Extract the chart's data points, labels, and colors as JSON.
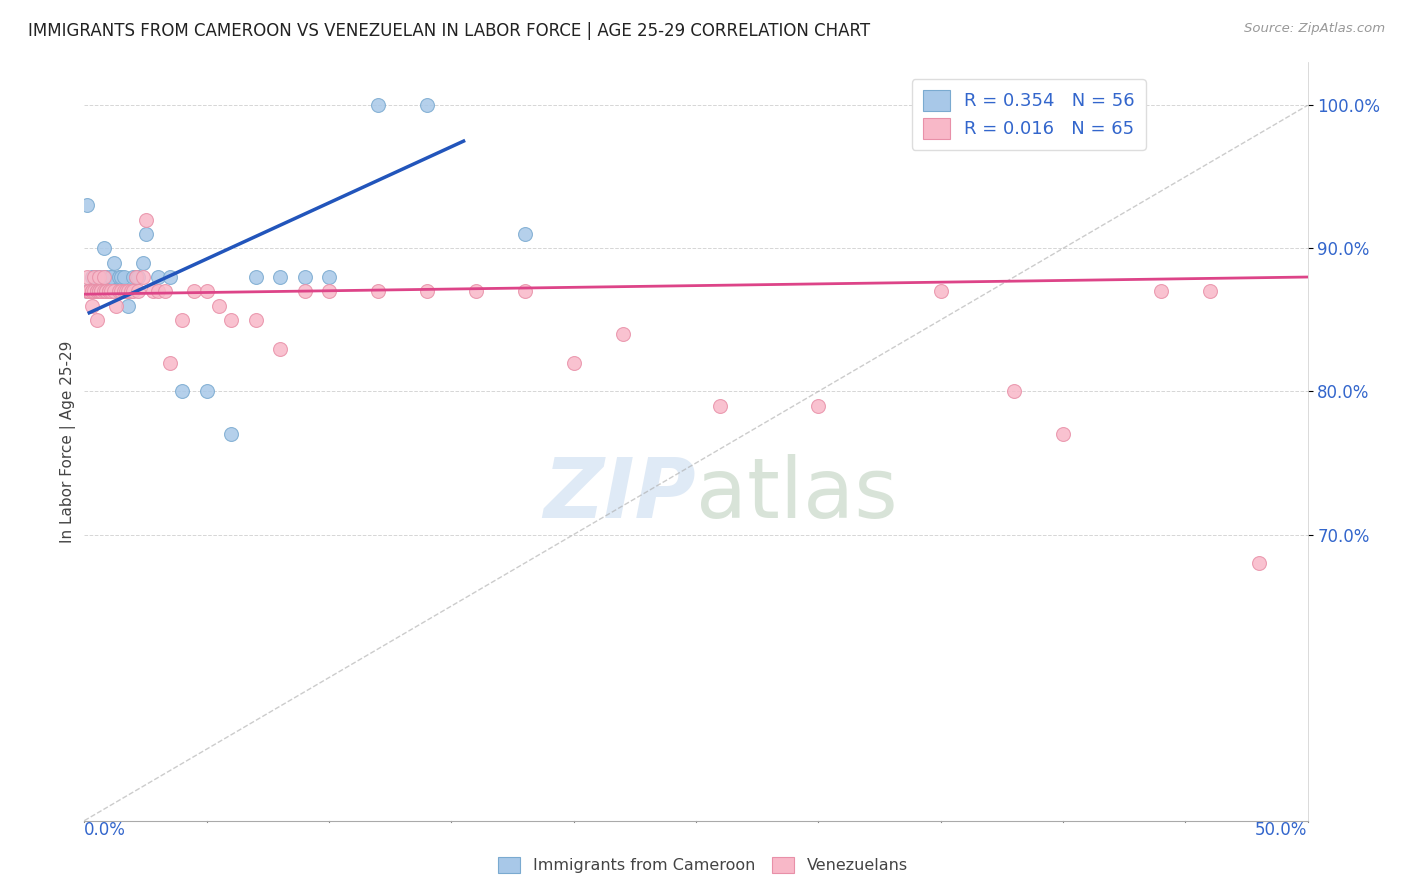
{
  "title": "IMMIGRANTS FROM CAMEROON VS VENEZUELAN IN LABOR FORCE | AGE 25-29 CORRELATION CHART",
  "source": "Source: ZipAtlas.com",
  "ylabel": "In Labor Force | Age 25-29",
  "xlim": [
    0.0,
    0.5
  ],
  "ylim": [
    0.5,
    1.03
  ],
  "yticks": [
    0.7,
    0.8,
    0.9,
    1.0
  ],
  "ytick_labels": [
    "70.0%",
    "80.0%",
    "90.0%",
    "100.0%"
  ],
  "cameroon_color": "#a8c8e8",
  "cameroon_edge": "#7aaad0",
  "venezuelan_color": "#f8b8c8",
  "venezuelan_edge": "#e890a8",
  "cameroon_line_color": "#2255bb",
  "venezuelan_line_color": "#dd4488",
  "diag_line_color": "#aaaaaa",
  "grid_color": "#cccccc",
  "watermark_color": "#dce8f5",
  "legend_R1": "R = 0.354",
  "legend_N1": "N = 56",
  "legend_R2": "R = 0.016",
  "legend_N2": "N = 65",
  "legend_color": "#3366cc",
  "cameroon_x": [
    0.001,
    0.001,
    0.002,
    0.002,
    0.003,
    0.003,
    0.003,
    0.003,
    0.004,
    0.004,
    0.004,
    0.004,
    0.005,
    0.005,
    0.005,
    0.005,
    0.005,
    0.006,
    0.006,
    0.006,
    0.006,
    0.007,
    0.007,
    0.007,
    0.008,
    0.008,
    0.008,
    0.009,
    0.009,
    0.01,
    0.01,
    0.011,
    0.011,
    0.012,
    0.013,
    0.014,
    0.015,
    0.016,
    0.018,
    0.02,
    0.021,
    0.022,
    0.024,
    0.025,
    0.03,
    0.035,
    0.04,
    0.05,
    0.06,
    0.07,
    0.08,
    0.09,
    0.1,
    0.12,
    0.14,
    0.18
  ],
  "cameroon_y": [
    0.87,
    0.93,
    0.87,
    0.87,
    0.87,
    0.87,
    0.88,
    0.87,
    0.88,
    0.87,
    0.87,
    0.87,
    0.87,
    0.87,
    0.88,
    0.87,
    0.87,
    0.87,
    0.87,
    0.87,
    0.88,
    0.87,
    0.87,
    0.87,
    0.88,
    0.9,
    0.87,
    0.88,
    0.87,
    0.87,
    0.87,
    0.88,
    0.88,
    0.89,
    0.87,
    0.88,
    0.88,
    0.88,
    0.86,
    0.88,
    0.88,
    0.88,
    0.89,
    0.91,
    0.88,
    0.88,
    0.8,
    0.8,
    0.77,
    0.88,
    0.88,
    0.88,
    0.88,
    1.0,
    1.0,
    0.91
  ],
  "venezuelan_x": [
    0.001,
    0.001,
    0.002,
    0.002,
    0.003,
    0.003,
    0.003,
    0.004,
    0.004,
    0.005,
    0.005,
    0.005,
    0.005,
    0.006,
    0.006,
    0.006,
    0.007,
    0.007,
    0.008,
    0.008,
    0.009,
    0.009,
    0.01,
    0.01,
    0.011,
    0.012,
    0.013,
    0.014,
    0.015,
    0.016,
    0.017,
    0.018,
    0.019,
    0.02,
    0.021,
    0.022,
    0.024,
    0.025,
    0.028,
    0.03,
    0.033,
    0.035,
    0.04,
    0.045,
    0.05,
    0.055,
    0.06,
    0.07,
    0.08,
    0.09,
    0.1,
    0.12,
    0.14,
    0.16,
    0.18,
    0.2,
    0.22,
    0.26,
    0.3,
    0.35,
    0.38,
    0.4,
    0.44,
    0.46,
    0.48
  ],
  "venezuelan_y": [
    0.87,
    0.88,
    0.87,
    0.87,
    0.87,
    0.86,
    0.87,
    0.88,
    0.87,
    0.87,
    0.87,
    0.87,
    0.85,
    0.88,
    0.87,
    0.87,
    0.87,
    0.87,
    0.87,
    0.88,
    0.87,
    0.87,
    0.87,
    0.87,
    0.87,
    0.87,
    0.86,
    0.87,
    0.87,
    0.87,
    0.87,
    0.87,
    0.87,
    0.87,
    0.88,
    0.87,
    0.88,
    0.92,
    0.87,
    0.87,
    0.87,
    0.82,
    0.85,
    0.87,
    0.87,
    0.86,
    0.85,
    0.85,
    0.83,
    0.87,
    0.87,
    0.87,
    0.87,
    0.87,
    0.87,
    0.82,
    0.84,
    0.79,
    0.79,
    0.87,
    0.8,
    0.77,
    0.87,
    0.87,
    0.68
  ],
  "cam_line_x": [
    0.002,
    0.155
  ],
  "cam_line_y": [
    0.855,
    0.975
  ],
  "ven_line_x": [
    0.0,
    0.5
  ],
  "ven_line_y": [
    0.868,
    0.88
  ]
}
